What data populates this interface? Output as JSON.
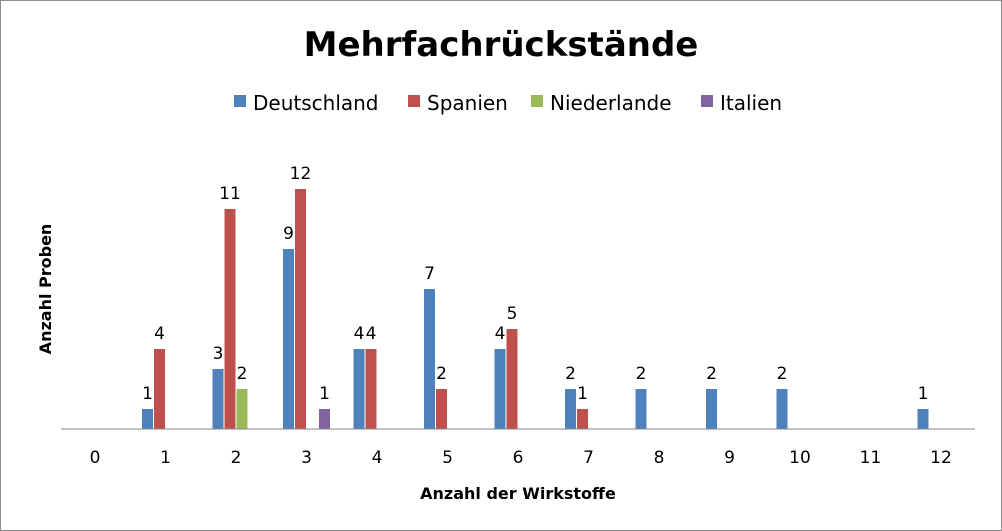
{
  "chart_data": {
    "type": "bar",
    "title": "Mehrfachrückstände",
    "xlabel": "Anzahl der Wirkstoffe",
    "ylabel": "Anzahl Proben",
    "categories": [
      "0",
      "1",
      "2",
      "3",
      "4",
      "5",
      "6",
      "7",
      "8",
      "9",
      "10",
      "11",
      "12"
    ],
    "ylim": [
      0,
      12
    ],
    "grid": false,
    "legend_position": "top",
    "series": [
      {
        "name": "Deutschland",
        "color": "#4F81BD",
        "values": [
          null,
          1,
          3,
          9,
          4,
          7,
          4,
          2,
          2,
          2,
          2,
          null,
          1
        ]
      },
      {
        "name": "Spanien",
        "color": "#C0504D",
        "values": [
          null,
          4,
          11,
          12,
          4,
          2,
          5,
          1,
          null,
          null,
          null,
          null,
          null
        ]
      },
      {
        "name": "Niederlande",
        "color": "#9BBB59",
        "values": [
          null,
          null,
          2,
          null,
          null,
          null,
          null,
          null,
          null,
          null,
          null,
          null,
          null
        ]
      },
      {
        "name": "Italien",
        "color": "#8064A2",
        "values": [
          null,
          null,
          null,
          1,
          null,
          null,
          null,
          null,
          null,
          null,
          null,
          null,
          null
        ]
      }
    ]
  }
}
